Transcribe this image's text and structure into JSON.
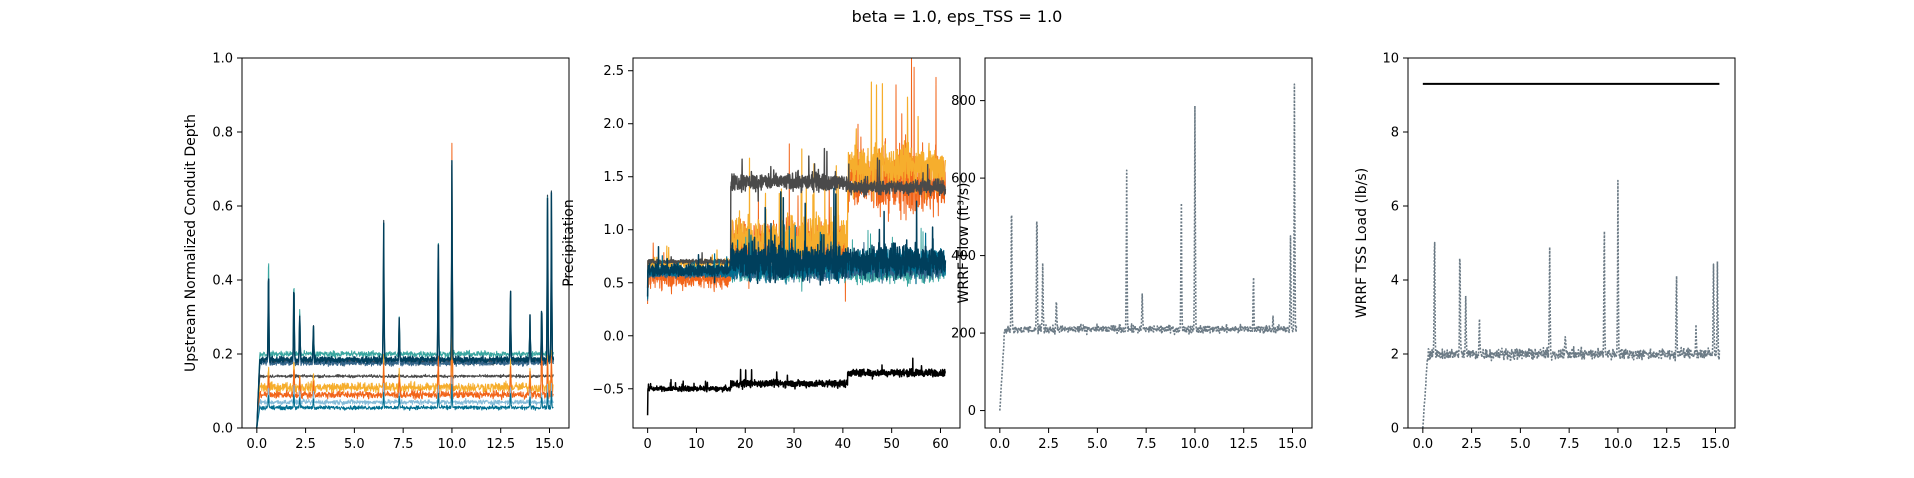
{
  "figure": {
    "suptitle": "beta = 1.0, eps_TSS = 1.0"
  },
  "chart_data": [
    {
      "id": "depth",
      "type": "line",
      "ylabel": "Upstream Normalized Conduit Depth",
      "xlim": [
        -0.76,
        16.0
      ],
      "ylim": [
        0.0,
        1.0
      ],
      "xticks": [
        0.0,
        2.5,
        5.0,
        7.5,
        10.0,
        12.5,
        15.0
      ],
      "xtick_labels": [
        "0.0",
        "2.5",
        "5.0",
        "7.5",
        "10.0",
        "12.5",
        "15.0"
      ],
      "yticks": [
        0.0,
        0.2,
        0.4,
        0.6,
        0.8,
        1.0
      ],
      "ytick_labels": [
        "0.0",
        "0.2",
        "0.4",
        "0.6",
        "0.8",
        "1.0"
      ],
      "x_range": [
        0.0,
        15.2
      ],
      "spikes_x": [
        0.6,
        1.9,
        2.2,
        2.9,
        6.5,
        7.3,
        9.3,
        10.0,
        13.0,
        14.0,
        14.6,
        14.9,
        15.1
      ],
      "series": [
        {
          "color": "#2f4858",
          "base": 0.18,
          "noise": 0.012,
          "peaks": [
            0.47,
            0.43,
            0.33,
            0.29,
            0.59,
            0.31,
            0.57,
            0.75,
            0.4,
            0.31,
            0.36,
            0.69,
            0.66
          ],
          "width": 1.2
        },
        {
          "color": "#33658a",
          "base": 0.175,
          "noise": 0.01,
          "peaks": [
            0.4,
            0.39,
            0.3,
            0.25,
            0.55,
            0.28,
            0.52,
            0.7,
            0.36,
            0.27,
            0.3,
            0.6,
            0.55
          ],
          "width": 1.0
        },
        {
          "color": "#4a4a4a",
          "base": 0.14,
          "noise": 0.006,
          "peaks": [
            0.0,
            0.0,
            0.0,
            0.0,
            0.0,
            0.0,
            0.0,
            0.0,
            0.0,
            0.0,
            0.0,
            0.0,
            0.0
          ],
          "width": 1.0
        },
        {
          "color": "#f6ae2d",
          "base": 0.11,
          "noise": 0.02,
          "peaks": [
            0.18,
            0.2,
            0.15,
            0.15,
            0.2,
            0.16,
            0.2,
            0.25,
            0.2,
            0.17,
            0.18,
            0.22,
            0.22
          ],
          "width": 1.0
        },
        {
          "color": "#f26419",
          "base": 0.09,
          "noise": 0.015,
          "peaks": [
            0.16,
            0.18,
            0.14,
            0.13,
            0.18,
            0.15,
            0.22,
            0.82,
            0.18,
            0.15,
            0.33,
            0.2,
            0.2
          ],
          "width": 1.0
        },
        {
          "color": "#86bbd8",
          "base": 0.07,
          "noise": 0.01,
          "peaks": [
            0.12,
            0.12,
            0.1,
            0.1,
            0.12,
            0.1,
            0.12,
            0.14,
            0.12,
            0.1,
            0.1,
            0.12,
            0.12
          ],
          "width": 1.0
        },
        {
          "color": "#006e90",
          "base": 0.055,
          "noise": 0.008,
          "peaks": [
            0.1,
            0.1,
            0.08,
            0.08,
            0.1,
            0.09,
            0.1,
            0.12,
            0.1,
            0.08,
            0.09,
            0.1,
            0.1
          ],
          "width": 1.0
        },
        {
          "color": "#3aa6a0",
          "base": 0.2,
          "noise": 0.012,
          "peaks": [
            0.52,
            0.44,
            0.34,
            0.29,
            0.58,
            0.31,
            0.56,
            0.74,
            0.39,
            0.3,
            0.34,
            0.68,
            0.65
          ],
          "width": 1.0
        },
        {
          "color": "#003f5c",
          "base": 0.185,
          "noise": 0.012,
          "peaks": [
            0.47,
            0.43,
            0.33,
            0.29,
            0.59,
            0.31,
            0.57,
            0.75,
            0.4,
            0.31,
            0.36,
            0.69,
            0.66
          ],
          "width": 1.4
        }
      ]
    },
    {
      "id": "precip",
      "type": "line",
      "ylabel": "Precipitation",
      "xlim": [
        -3.0,
        64.0
      ],
      "ylim": [
        -0.87,
        2.62
      ],
      "xticks": [
        0,
        10,
        20,
        30,
        40,
        50,
        60
      ],
      "xtick_labels": [
        "0",
        "10",
        "20",
        "30",
        "40",
        "50",
        "60"
      ],
      "yticks": [
        -0.5,
        0.0,
        0.5,
        1.0,
        1.5,
        2.0,
        2.5
      ],
      "ytick_labels": [
        "−0.5",
        "0.0",
        "0.5",
        "1.0",
        "1.5",
        "2.0",
        "2.5"
      ],
      "x_range": [
        0,
        61
      ],
      "series": [
        {
          "color": "#f26419",
          "segments": [
            [
              0,
              17,
              0.55,
              0.15
            ],
            [
              17,
              41,
              0.85,
              0.35
            ],
            [
              41,
              61,
              1.45,
              0.45
            ]
          ],
          "width": 1.0
        },
        {
          "color": "#f6ae2d",
          "segments": [
            [
              0,
              17,
              0.68,
              0.06
            ],
            [
              17,
              41,
              0.9,
              0.3
            ],
            [
              41,
              61,
              1.6,
              0.3
            ]
          ],
          "width": 1.2
        },
        {
          "color": "#3aa6a0",
          "segments": [
            [
              0,
              17,
              0.62,
              0.05
            ],
            [
              17,
              41,
              0.6,
              0.12
            ],
            [
              41,
              61,
              0.6,
              0.15
            ]
          ],
          "width": 1.0
        },
        {
          "color": "#33658a",
          "segments": [
            [
              0,
              17,
              0.58,
              0.05
            ],
            [
              17,
              41,
              0.6,
              0.1
            ],
            [
              41,
              61,
              0.62,
              0.12
            ]
          ],
          "width": 1.0
        },
        {
          "color": "#4a4a4a",
          "segments": [
            [
              0,
              17,
              0.7,
              0.03
            ],
            [
              17,
              41,
              1.45,
              0.12
            ],
            [
              41,
              61,
              1.4,
              0.1
            ]
          ],
          "width": 1.4
        },
        {
          "color": "#006e90",
          "segments": [
            [
              0,
              17,
              0.6,
              0.06
            ],
            [
              17,
              41,
              0.65,
              0.15
            ],
            [
              41,
              61,
              0.7,
              0.18
            ]
          ],
          "width": 1.2
        },
        {
          "color": "#003f5c",
          "segments": [
            [
              0,
              17,
              0.62,
              0.08
            ],
            [
              17,
              41,
              0.7,
              0.25
            ],
            [
              41,
              61,
              0.7,
              0.22
            ]
          ],
          "width": 1.5
        },
        {
          "color": "#000000",
          "segments": [
            [
              0,
              17,
              -0.5,
              0.03
            ],
            [
              17,
              41,
              -0.45,
              0.05
            ],
            [
              41,
              61,
              -0.35,
              0.05
            ]
          ],
          "width": 1.5
        }
      ]
    },
    {
      "id": "flow",
      "type": "line",
      "ylabel": "WRRF Flow (ft³/s)",
      "xlim": [
        -0.76,
        16.0
      ],
      "ylim": [
        -45,
        910
      ],
      "xticks": [
        0.0,
        2.5,
        5.0,
        7.5,
        10.0,
        12.5,
        15.0
      ],
      "xtick_labels": [
        "0.0",
        "2.5",
        "5.0",
        "7.5",
        "10.0",
        "12.5",
        "15.0"
      ],
      "yticks": [
        0,
        200,
        400,
        600,
        800
      ],
      "ytick_labels": [
        "0",
        "200",
        "400",
        "600",
        "800"
      ],
      "x_range": [
        0.0,
        15.2
      ],
      "base": 210,
      "noise": 15,
      "spikes_x": [
        0.6,
        1.9,
        2.2,
        2.9,
        6.5,
        7.3,
        9.3,
        10.0,
        13.0,
        14.0,
        14.9,
        15.1
      ],
      "spikes_y": [
        610,
        580,
        400,
        300,
        640,
        310,
        600,
        830,
        370,
        240,
        480,
        870
      ],
      "color": "#6b7a85"
    },
    {
      "id": "tss",
      "type": "line",
      "ylabel": "WRRF TSS Load (lb/s)",
      "xlim": [
        -0.76,
        16.0
      ],
      "ylim": [
        0,
        10
      ],
      "xticks": [
        0.0,
        2.5,
        5.0,
        7.5,
        10.0,
        12.5,
        15.0
      ],
      "xtick_labels": [
        "0.0",
        "2.5",
        "5.0",
        "7.5",
        "10.0",
        "12.5",
        "15.0"
      ],
      "yticks": [
        0,
        2,
        4,
        6,
        8,
        10
      ],
      "ytick_labels": [
        "0",
        "2",
        "4",
        "6",
        "8",
        "10"
      ],
      "x_range": [
        0.0,
        15.2
      ],
      "base": 2.0,
      "noise": 0.22,
      "spikes_x": [
        0.6,
        1.9,
        2.2,
        2.9,
        6.5,
        7.3,
        9.3,
        10.0,
        13.0,
        14.0,
        14.9,
        15.1
      ],
      "spikes_y": [
        5.9,
        5.3,
        3.8,
        3.1,
        5.2,
        2.6,
        6.2,
        6.9,
        4.4,
        2.9,
        4.8,
        4.7
      ],
      "threshold": 9.3,
      "color": "#6b7a85",
      "threshold_color": "#000000"
    }
  ]
}
